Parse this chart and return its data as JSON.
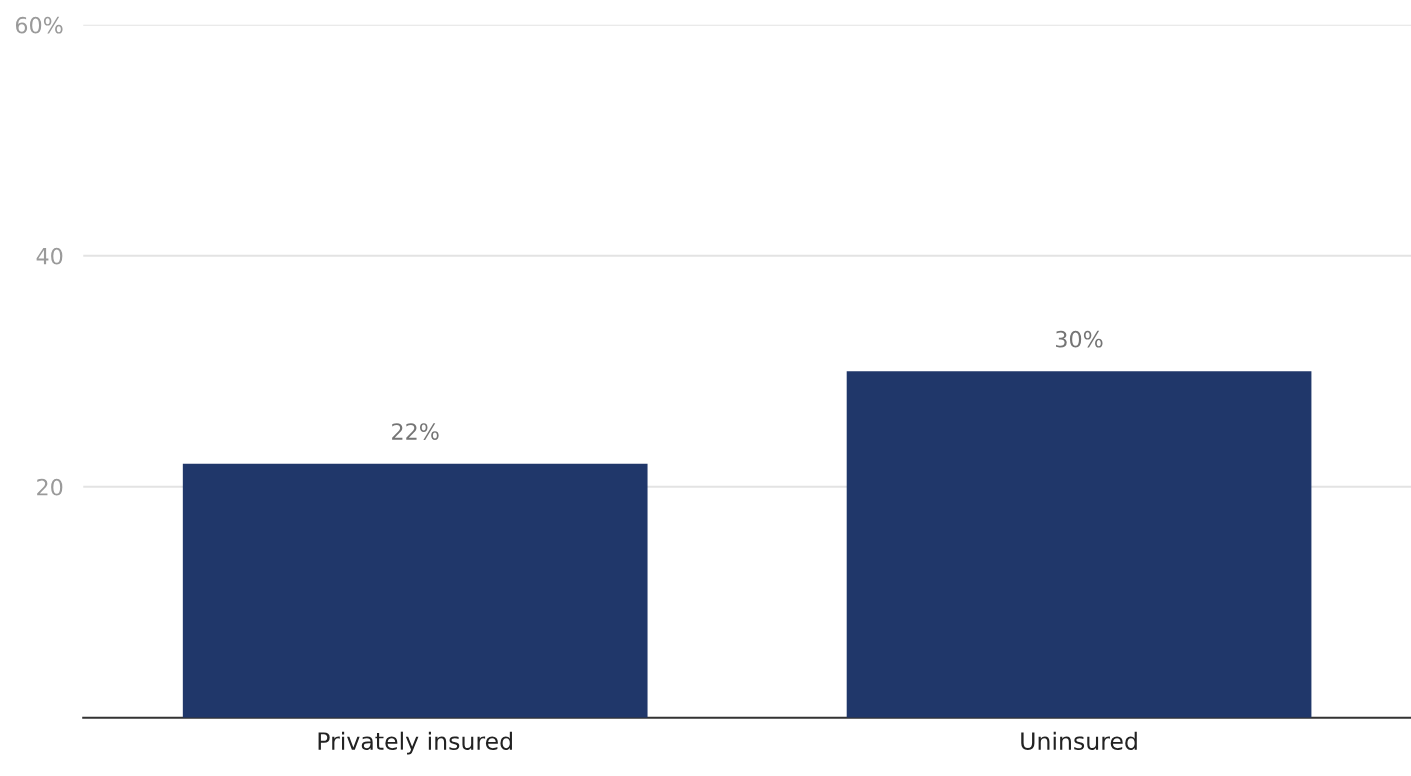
{
  "chart_data": {
    "type": "bar",
    "categories": [
      "Privately insured",
      "Uninsured"
    ],
    "values": [
      22,
      30
    ],
    "color": "#20376a",
    "value_labels": [
      "22%",
      "30%"
    ],
    "ylim": [
      0,
      60
    ],
    "yticks": [
      {
        "value": 20,
        "label": "20"
      },
      {
        "value": 40,
        "label": "40"
      },
      {
        "value": 60,
        "label": "60%"
      }
    ],
    "grid": "y"
  }
}
